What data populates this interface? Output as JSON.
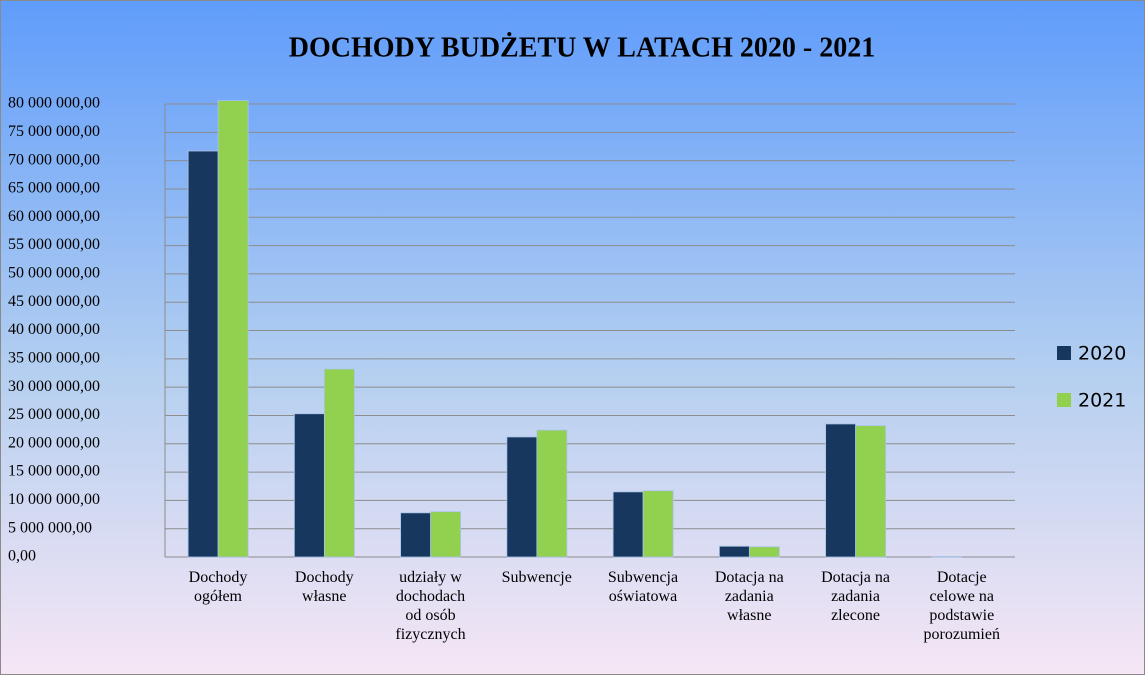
{
  "chart_data": {
    "type": "bar",
    "title": "DOCHODY BUDŻETU W LATACH 2020 - 2021",
    "categories": [
      "Dochody\nogółem",
      "Dochody\nwłasne",
      "udziały w\ndochodach\nod osób\nfizycznych",
      "Subwencje",
      "Subwencja\noświatowa",
      "Dotacja na\nzadania\nwłasne",
      "Dotacja na\nzadania\nzlecone",
      "Dotacje\ncelowe na\npodstawie\nporozumień"
    ],
    "series": [
      {
        "name": "2020",
        "color": "#17375e",
        "values": [
          71700000,
          25300000,
          7800000,
          21200000,
          11500000,
          1900000,
          23500000,
          100000
        ]
      },
      {
        "name": "2021",
        "color": "#92d050",
        "values": [
          80600000,
          33200000,
          8000000,
          22400000,
          11700000,
          1800000,
          23200000,
          0
        ]
      }
    ],
    "ylim": [
      0,
      80000000
    ],
    "yticks": [
      {
        "value": 0,
        "label": "0,00"
      },
      {
        "value": 5000000,
        "label": "5 000 000,00"
      },
      {
        "value": 10000000,
        "label": "10 000 000,00"
      },
      {
        "value": 15000000,
        "label": "15 000 000,00"
      },
      {
        "value": 20000000,
        "label": "20 000 000,00"
      },
      {
        "value": 25000000,
        "label": "25 000 000,00"
      },
      {
        "value": 30000000,
        "label": "30 000 000,00"
      },
      {
        "value": 35000000,
        "label": "35 000 000,00"
      },
      {
        "value": 40000000,
        "label": "40 000 000,00"
      },
      {
        "value": 45000000,
        "label": "45 000 000,00"
      },
      {
        "value": 50000000,
        "label": "50 000 000,00"
      },
      {
        "value": 55000000,
        "label": "55 000 000,00"
      },
      {
        "value": 60000000,
        "label": "60 000 000,00"
      },
      {
        "value": 65000000,
        "label": "65 000 000,00"
      },
      {
        "value": 70000000,
        "label": "70 000 000,00"
      },
      {
        "value": 75000000,
        "label": "75 000 000,00"
      },
      {
        "value": 80000000,
        "label": "80 000 000,00"
      }
    ],
    "grid": true,
    "legend": "right"
  }
}
